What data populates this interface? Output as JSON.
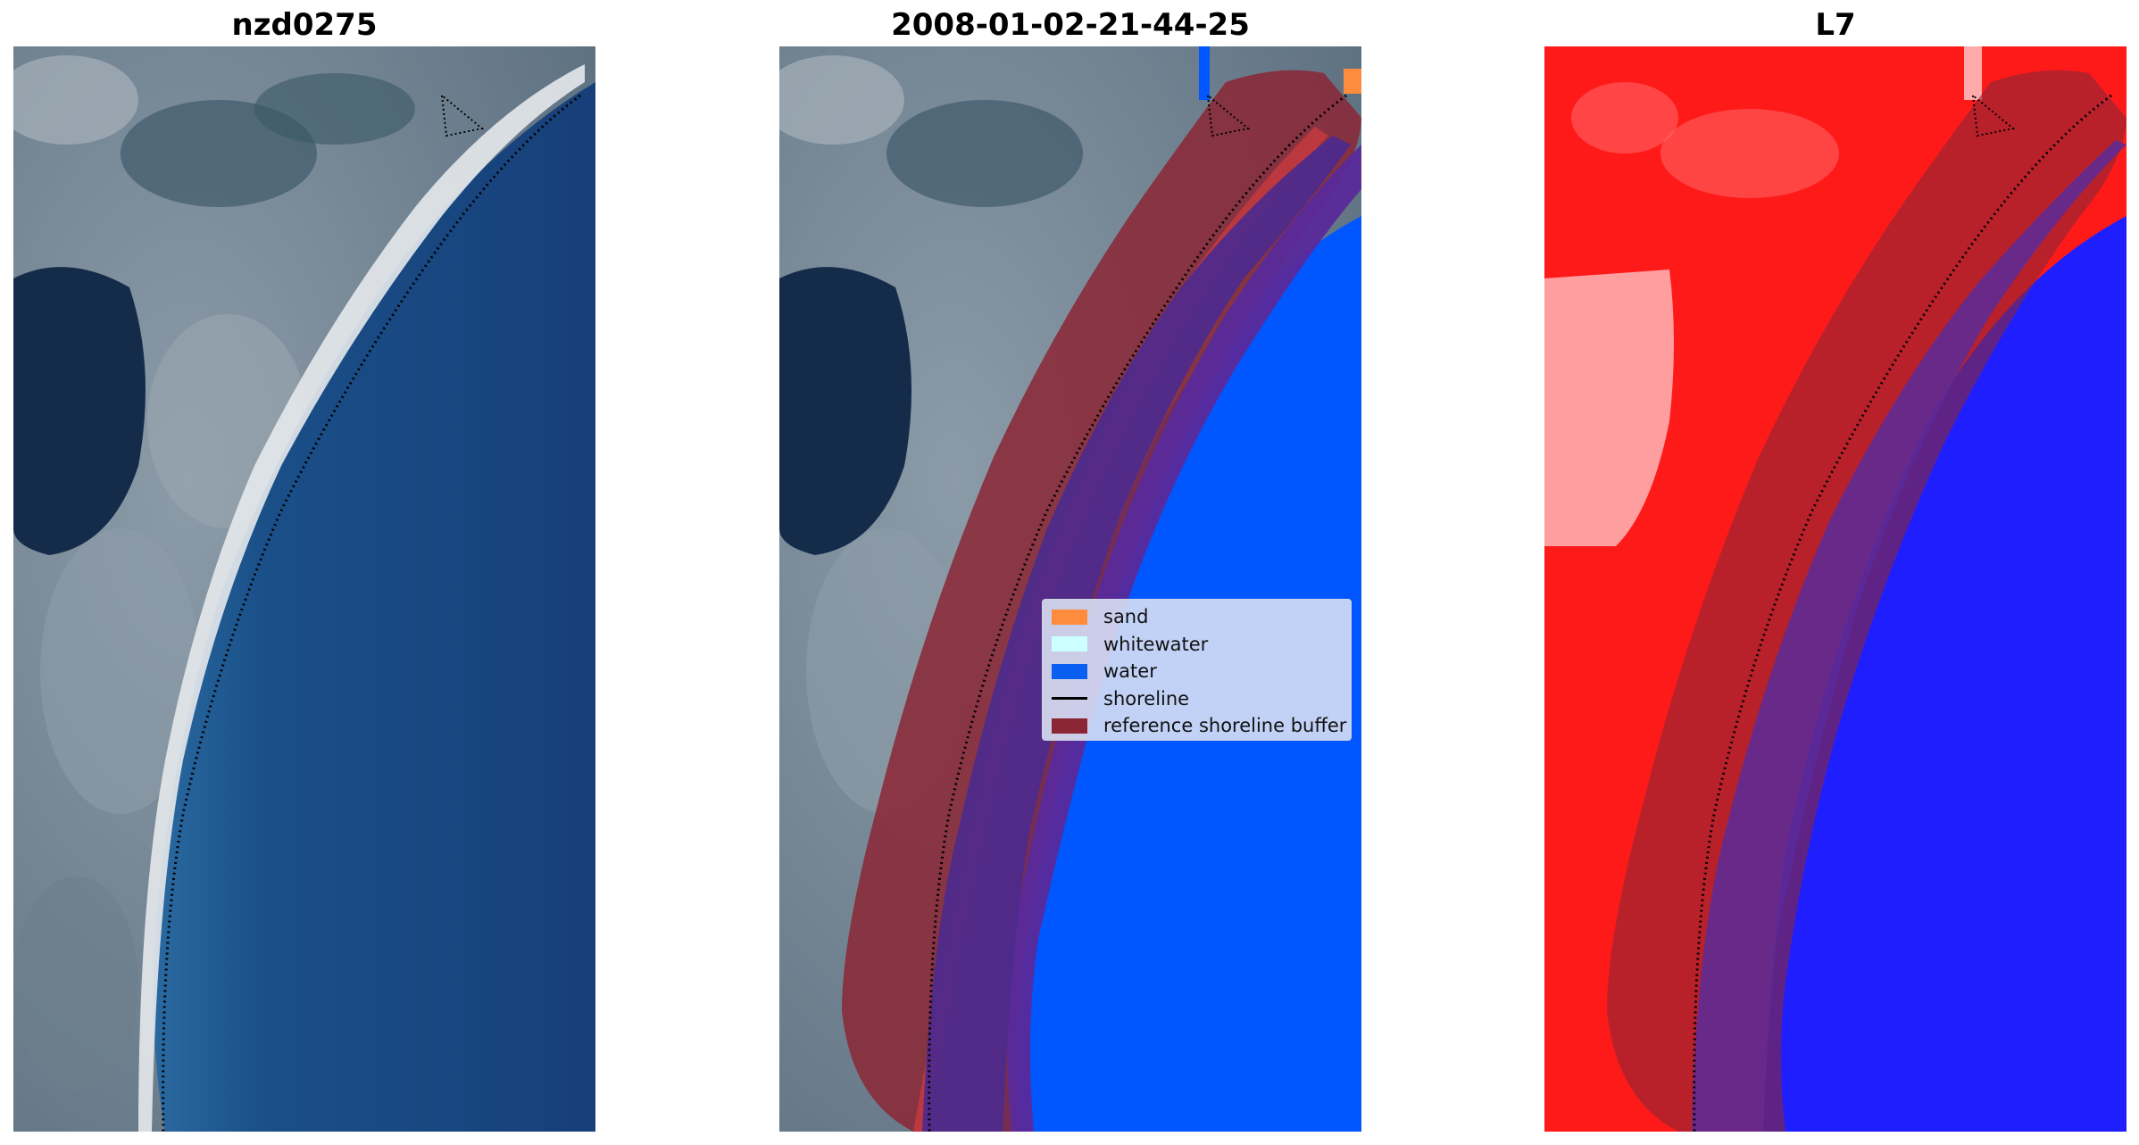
{
  "panels": [
    {
      "title": "nzd0275",
      "view": "rgb-satellite-image"
    },
    {
      "title": "2008-01-02-21-44-25",
      "view": "classified-image"
    },
    {
      "title": "L7",
      "view": "mndwi-index-image"
    }
  ],
  "legend": {
    "items": [
      {
        "label": "sand",
        "color": "#ff8c3c",
        "kind": "patch"
      },
      {
        "label": "whitewater",
        "color": "#ccffff",
        "kind": "patch"
      },
      {
        "label": "water",
        "color": "#0a5ef0",
        "kind": "patch"
      },
      {
        "label": "shoreline",
        "color": "#000000",
        "kind": "line"
      },
      {
        "label": "reference shoreline buffer",
        "color": "#8b2635",
        "kind": "patch"
      }
    ]
  },
  "colors": {
    "sea_blue": "#16407a",
    "classified_water": "#0057ff",
    "buffer": "#8b2635",
    "index_land": "#ff1a1a",
    "index_water": "#1e1eff"
  }
}
